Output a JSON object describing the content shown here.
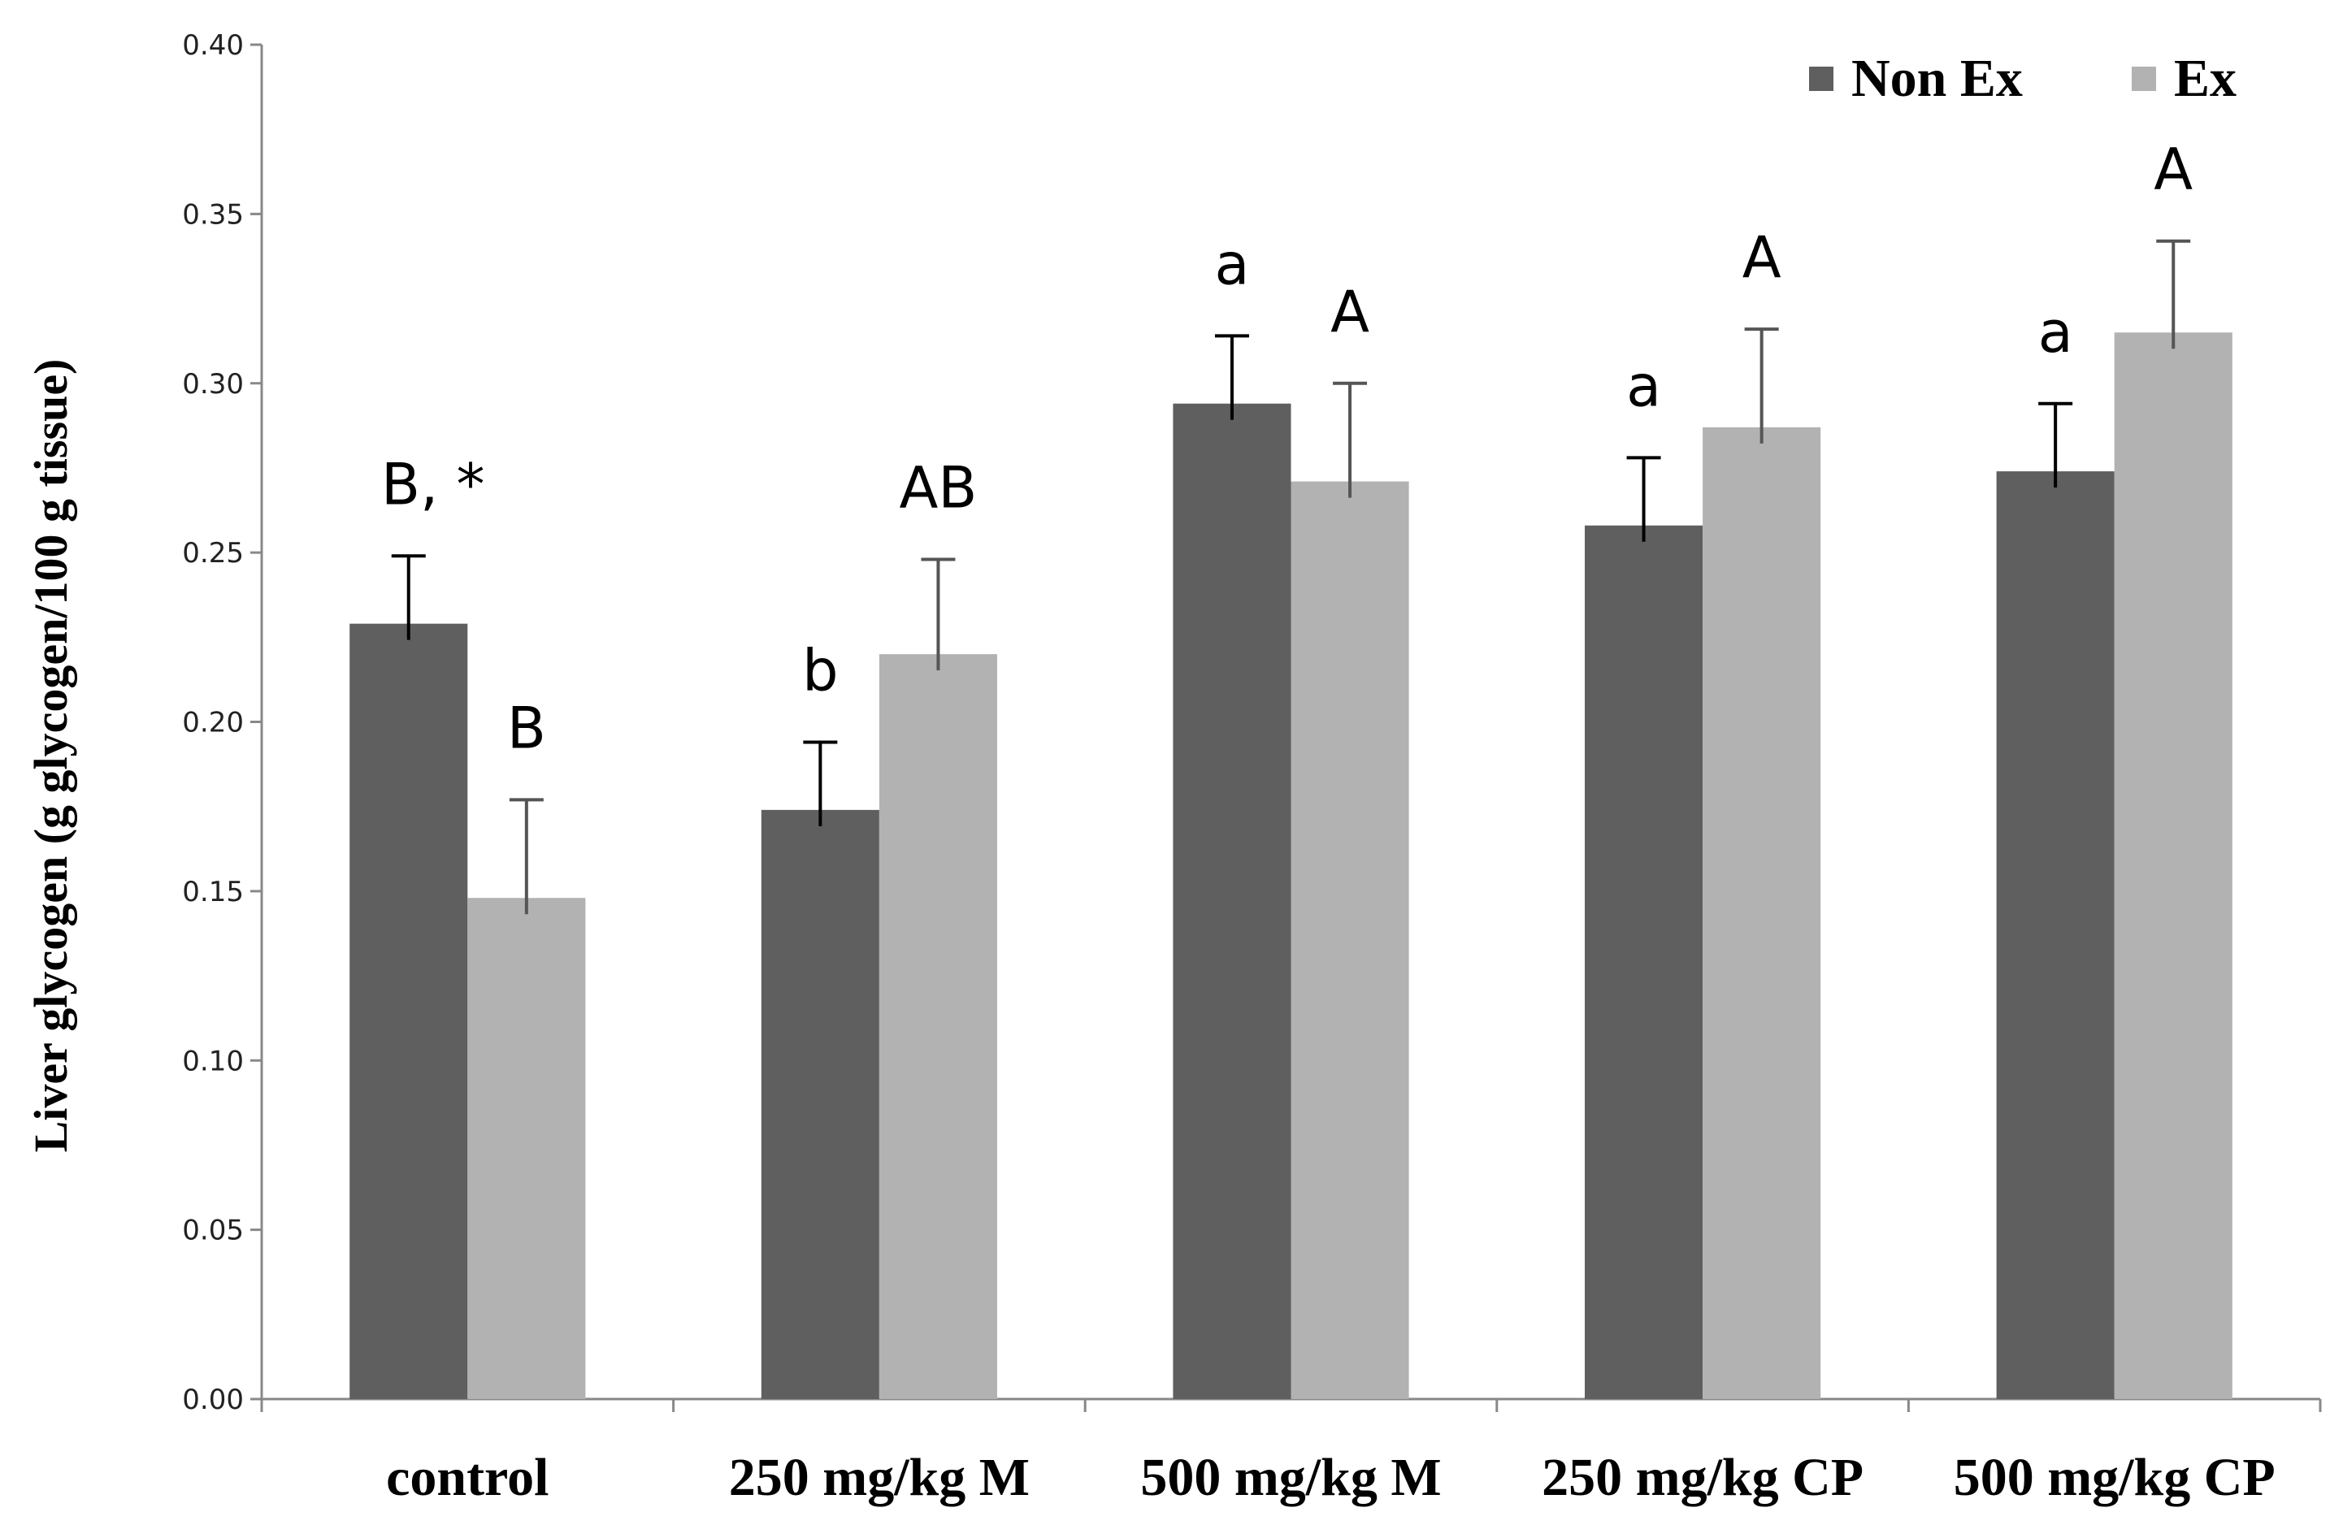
{
  "chart_data": {
    "type": "bar",
    "title": "",
    "xlabel": "",
    "ylabel": "Liver glycogen (g glycogen/100 g tissue)",
    "ylim": [
      0,
      0.4
    ],
    "yticks": [
      "0.00",
      "0.05",
      "0.10",
      "0.15",
      "0.20",
      "0.25",
      "0.30",
      "0.35",
      "0.40"
    ],
    "grid": false,
    "legend_position": "top-right",
    "categories": [
      "control",
      "250 mg/kg M",
      "500 mg/kg M",
      "250 mg/kg CP",
      "500 mg/kg CP"
    ],
    "series": [
      {
        "name": "Non Ex",
        "color": "#5f5f5f",
        "values": [
          0.229,
          0.174,
          0.294,
          0.258,
          0.274
        ],
        "errors": [
          0.02,
          0.02,
          0.02,
          0.02,
          0.02
        ],
        "annotations": [
          "B, *",
          "b",
          "a",
          "a",
          "a"
        ]
      },
      {
        "name": "Ex",
        "color": "#b2b2b2",
        "values": [
          0.148,
          0.22,
          0.271,
          0.287,
          0.315
        ],
        "errors": [
          0.029,
          0.028,
          0.029,
          0.029,
          0.027
        ],
        "annotations": [
          "B",
          "AB",
          "A",
          "A",
          "A"
        ]
      }
    ]
  }
}
